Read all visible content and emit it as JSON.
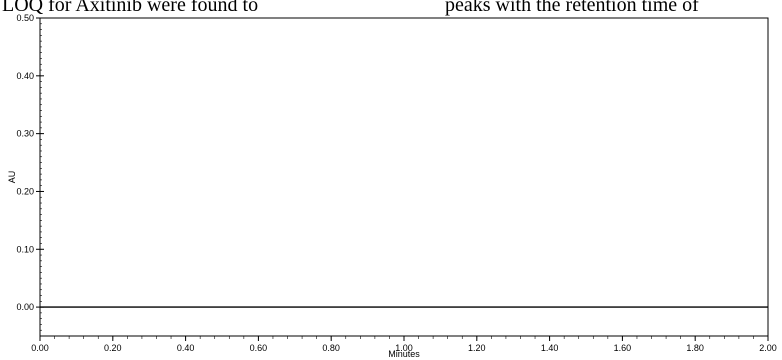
{
  "page": {
    "text_left": "LOQ for Axitinib were found to",
    "text_right": "peaks with the retention time of"
  },
  "chart_data": {
    "type": "line",
    "title": "",
    "xlabel": "Minutes",
    "ylabel": "AU",
    "xlim": [
      0.0,
      2.0
    ],
    "ylim": [
      -0.05,
      0.5
    ],
    "x_ticks": [
      "0.00",
      "0.20",
      "0.40",
      "0.60",
      "0.80",
      "1.00",
      "1.20",
      "1.40",
      "1.60",
      "1.80",
      "2.00"
    ],
    "y_ticks": [
      "0.00",
      "0.10",
      "0.20",
      "0.30",
      "0.40",
      "0.50"
    ],
    "y_tick_values": [
      0.0,
      0.1,
      0.2,
      0.3,
      0.4,
      0.5
    ],
    "x_tick_values": [
      0.0,
      0.2,
      0.4,
      0.6,
      0.8,
      1.0,
      1.2,
      1.4,
      1.6,
      1.8,
      2.0
    ],
    "grid": false,
    "series": [
      {
        "x": [
          0.0,
          2.0
        ],
        "y": [
          0.0,
          0.0
        ]
      }
    ]
  }
}
